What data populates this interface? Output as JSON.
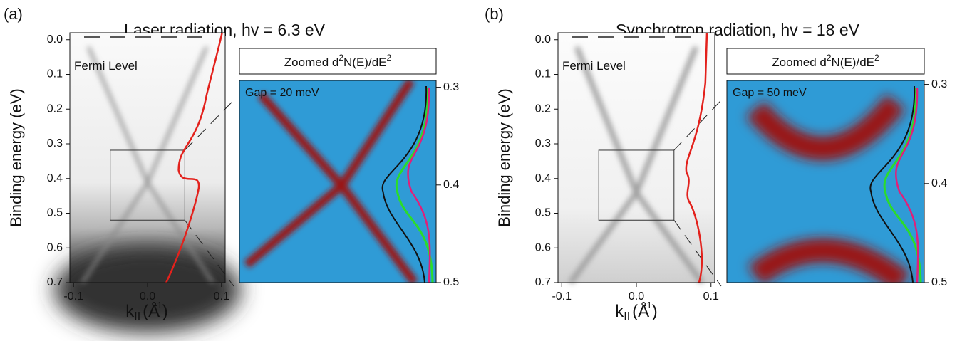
{
  "panels": [
    {
      "tag": "(a)",
      "title": "Laser radiation, hv = 6.3 eV",
      "ylabel": "Binding energy (eV)",
      "xlabel": {
        "k": "k",
        "sub": "II",
        "unit": "(Å",
        "exp": "-1",
        "close": ")"
      },
      "annotation": "Fermi Level",
      "xlim": [
        -0.105,
        0.105
      ],
      "xticks": [
        -0.1,
        {
          "value": 0,
          "label": "0.0"
        },
        0.1
      ],
      "ylim": [
        -0.02,
        0.7
      ],
      "yticks": [
        {
          "value": 0,
          "label": "0.0"
        },
        0.1,
        0.2,
        0.3,
        0.4,
        0.5,
        0.6,
        0.7
      ],
      "inset": {
        "title": {
          "text": "Zoomed d",
          "exp1": "2",
          "mid": "N(E)/dE",
          "exp2": "2"
        },
        "gap": "Gap = 20 meV",
        "ylim": [
          0.293,
          0.5
        ],
        "yticks": [
          0.3,
          0.4,
          0.5
        ]
      }
    },
    {
      "tag": "(b)",
      "title": "Synchrotron radiation, hv = 18 eV",
      "ylabel": "Binding energy (eV)",
      "xlabel": {
        "k": "k",
        "sub": "II",
        "unit": "(Å",
        "exp": "-1",
        "close": ")"
      },
      "annotation": "Fermi Level",
      "xlim": [
        -0.105,
        0.105
      ],
      "xticks": [
        -0.1,
        {
          "value": 0,
          "label": "0.0"
        },
        0.1
      ],
      "ylim": [
        -0.02,
        0.7
      ],
      "yticks": [
        {
          "value": 0,
          "label": "0.0"
        },
        0.1,
        0.2,
        0.3,
        0.4,
        0.5,
        0.6,
        0.7
      ],
      "inset": {
        "title": {
          "text": "Zoomed d",
          "exp1": "2",
          "mid": "N(E)/dE",
          "exp2": "2"
        },
        "gap": "Gap = 50 meV",
        "ylim": [
          0.296,
          0.5
        ],
        "yticks": [
          0.3,
          0.4,
          0.5
        ]
      }
    }
  ]
}
